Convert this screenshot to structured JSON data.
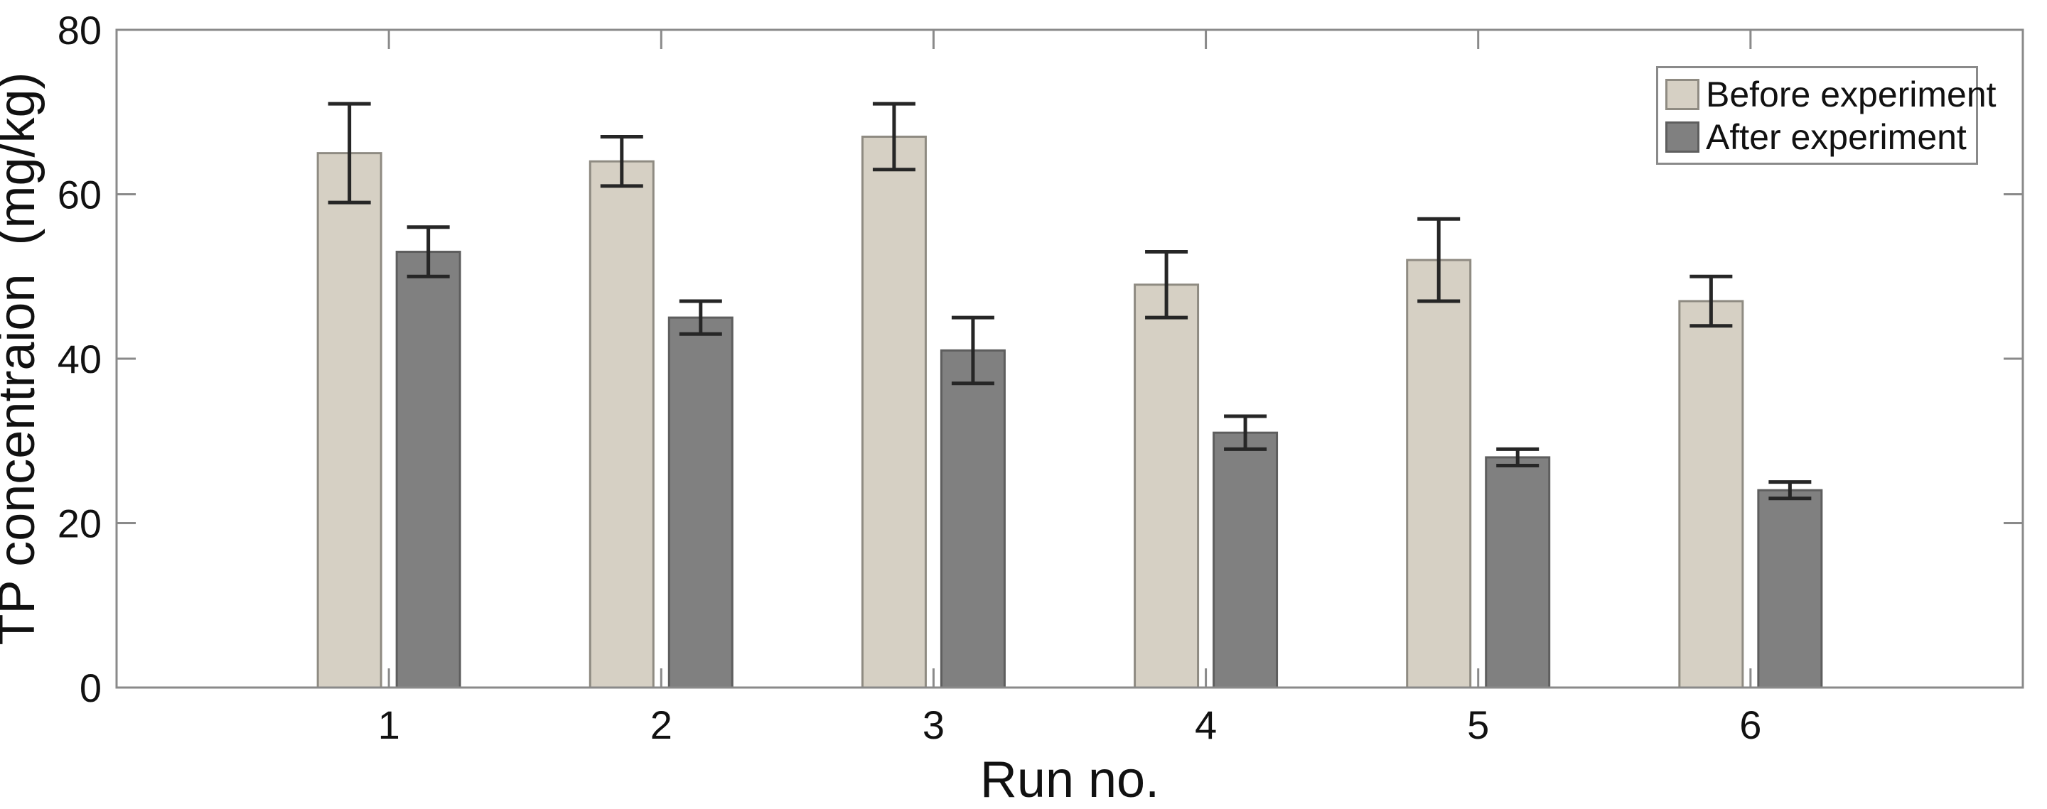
{
  "figure": {
    "background": "#ffffff",
    "axis_color": "#8a8a8a",
    "text_color": "#111111",
    "error_bar_color": "#262626"
  },
  "chart_data": {
    "type": "bar",
    "categories": [
      "1",
      "2",
      "3",
      "4",
      "5",
      "6"
    ],
    "series": [
      {
        "name": "Before experiment",
        "values": [
          65,
          64,
          67,
          49,
          52,
          47
        ],
        "errors": [
          6,
          3,
          4,
          4,
          5,
          3
        ],
        "fill": "#d6d0c4",
        "stroke": "#8f8b82"
      },
      {
        "name": "After experiment",
        "values": [
          53,
          45,
          41,
          31,
          28,
          24
        ],
        "errors": [
          3,
          2,
          4,
          2,
          1,
          1
        ],
        "fill": "#808080",
        "stroke": "#5e5e5e"
      }
    ],
    "title": "",
    "xlabel": "Run no.",
    "ylabel": "TP concentraion  (mg/kg)",
    "xlim": [
      0,
      7
    ],
    "ylim": [
      0,
      80
    ],
    "yticks": [
      0,
      20,
      40,
      60,
      80
    ],
    "grid": false,
    "error_bars": true,
    "legend_position": "top-right",
    "legend_entries": [
      "Before experiment",
      "After experiment"
    ]
  }
}
